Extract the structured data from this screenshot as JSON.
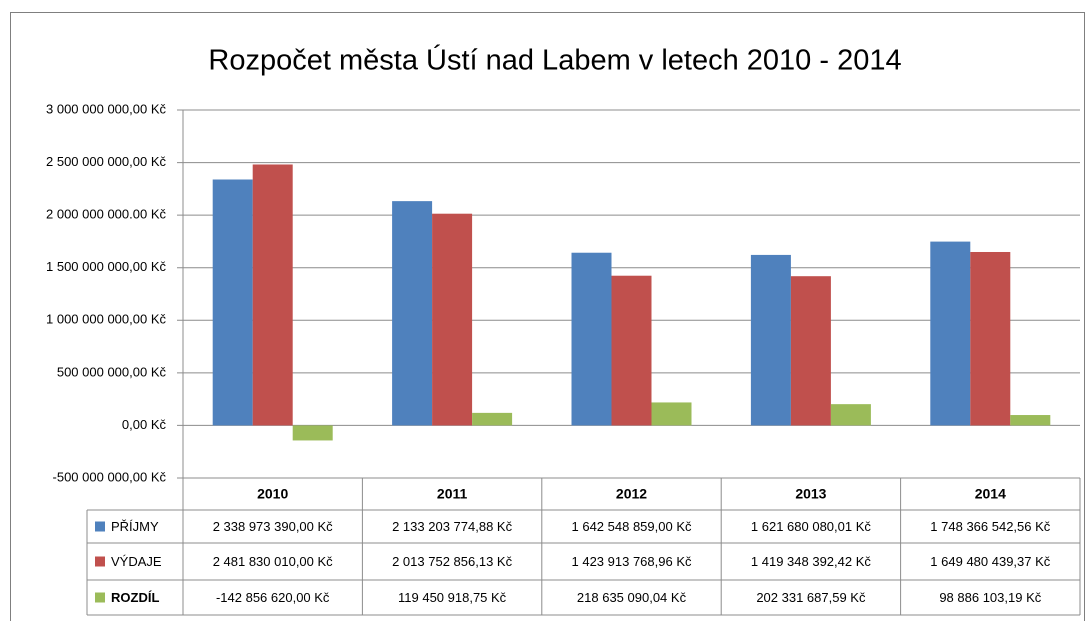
{
  "chart_data": {
    "type": "bar",
    "title": "Rozpočet města Ústí nad Labem v letech 2010 - 2014",
    "categories": [
      "2010",
      "2011",
      "2012",
      "2013",
      "2014"
    ],
    "series": [
      {
        "name": "PŘÍJMY",
        "color": "#4f81bd",
        "values": [
          2338973390.0,
          2133203774.88,
          1642548859.0,
          1621680080.01,
          1748366542.56
        ],
        "value_labels": [
          "2 338 973 390,00 Kč",
          "2 133 203 774,88 Kč",
          "1 642 548 859,00 Kč",
          "1 621 680 080,01 Kč",
          "1 748 366 542,56 Kč"
        ]
      },
      {
        "name": "VÝDAJE",
        "color": "#c0504d",
        "values": [
          2481830010.0,
          2013752856.13,
          1423913768.96,
          1419348392.42,
          1649480439.37
        ],
        "value_labels": [
          "2 481 830 010,00 Kč",
          "2 013 752 856,13 Kč",
          "1 423 913 768,96 Kč",
          "1 419 348 392,42 Kč",
          "1 649 480 439,37 Kč"
        ]
      },
      {
        "name": "ROZDÍL",
        "color": "#9bbb59",
        "values": [
          -142856620.0,
          119450918.75,
          218635090.04,
          202331687.59,
          98886103.19
        ],
        "value_labels": [
          "-142 856 620,00 Kč",
          "119 450 918,75 Kč",
          "218 635 090,04 Kč",
          "202 331 687,59 Kč",
          "98 886 103,19 Kč"
        ]
      }
    ],
    "ylim": [
      -500000000,
      3000000000
    ],
    "yticks": [
      {
        "value": -500000000,
        "label": "-500 000 000,00 Kč"
      },
      {
        "value": 0,
        "label": "0,00 Kč"
      },
      {
        "value": 500000000,
        "label": "500 000 000,00 Kč"
      },
      {
        "value": 1000000000,
        "label": "1 000 000 000,00 Kč"
      },
      {
        "value": 1500000000,
        "label": "1 500 000 000,00 Kč"
      },
      {
        "value": 2000000000,
        "label": "2 000 000 000.00 Kč"
      },
      {
        "value": 2500000000,
        "label": "2 500 000 000,00 Kč"
      },
      {
        "value": 3000000000,
        "label": "3 000 000 000,00 Kč"
      }
    ],
    "grid": true
  }
}
